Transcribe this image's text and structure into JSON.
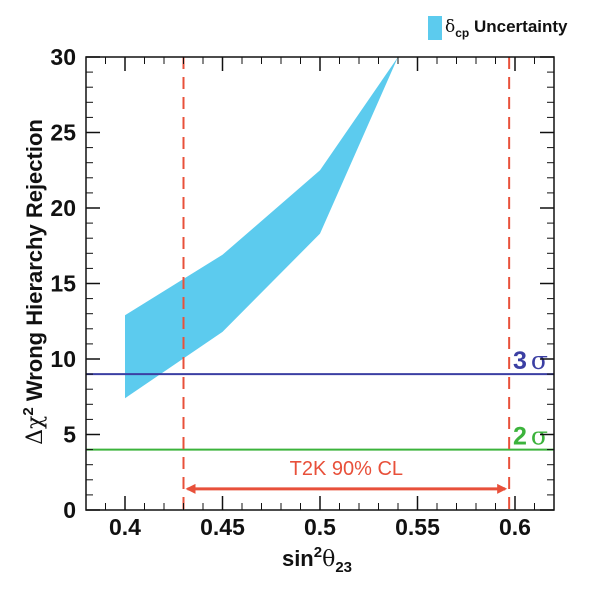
{
  "chart_data": {
    "type": "area",
    "title": "",
    "xlabel": {
      "main": "sin",
      "sup": "2",
      "greek": "θ",
      "sub": "23"
    },
    "ylabel": {
      "prefix": "Δχ",
      "sup": "2",
      "rest": " Wrong Hierarchy Rejection"
    },
    "xlim": [
      0.38,
      0.62
    ],
    "ylim": [
      0,
      30
    ],
    "x_ticks": [
      0.4,
      0.45,
      0.5,
      0.55,
      0.6
    ],
    "x_tick_labels": [
      "0.4",
      "0.45",
      "0.5",
      "0.55",
      "0.6"
    ],
    "y_ticks": [
      0,
      5,
      10,
      15,
      20,
      25,
      30
    ],
    "y_tick_labels": [
      "0",
      "5",
      "10",
      "15",
      "20",
      "25",
      "30"
    ],
    "band": {
      "name": "δcp Uncertainty",
      "color": "#5ccbee",
      "x": [
        0.4,
        0.45,
        0.5,
        0.54
      ],
      "upper": [
        12.9,
        16.9,
        22.5,
        30.0
      ],
      "lower": [
        7.4,
        11.8,
        18.3,
        30.0
      ]
    },
    "sigma_lines": [
      {
        "y": 9,
        "label_num": "3",
        "label_sym": "σ",
        "color": "#3b3fa3"
      },
      {
        "y": 4,
        "label_num": "2",
        "label_sym": "σ",
        "color": "#3cb33c"
      }
    ],
    "vlines": {
      "x": [
        0.43,
        0.597
      ],
      "color": "#e8503a",
      "style": "dashed"
    },
    "annotation": {
      "text": "T2K 90% CL",
      "x_from": 0.43,
      "x_to": 0.597,
      "y": 1.4,
      "color": "#e8503a"
    },
    "legend": {
      "position": "top-right",
      "greek": "δ",
      "sub": "cp",
      "rest": " Uncertainty",
      "color": "#5ccbee"
    }
  }
}
